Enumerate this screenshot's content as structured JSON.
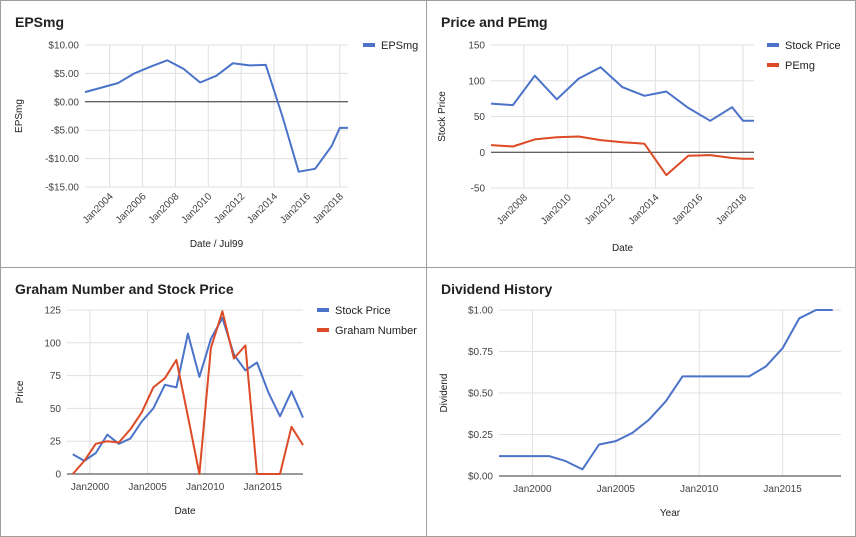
{
  "chart_data": [
    {
      "id": "eps",
      "type": "line",
      "title": "EPSmg",
      "xlabel": "Date / Jul99",
      "ylabel": "EPSmg",
      "ylim": [
        -15,
        10
      ],
      "yticks": [
        10,
        5,
        0,
        -5,
        -10,
        -15
      ],
      "ytick_labels": [
        "$10.00",
        "$5.00",
        "$0.00",
        "-$5.00",
        "-$10.00",
        "-$15.00"
      ],
      "xlim": [
        2002.5,
        2018.5
      ],
      "xticks": [
        2004,
        2006,
        2008,
        2010,
        2012,
        2014,
        2016,
        2018
      ],
      "xtick_labels": [
        "Jan2004",
        "Jan2006",
        "Jan2008",
        "Jan2010",
        "Jan2012",
        "Jan2014",
        "Jan2016",
        "Jan2018"
      ],
      "xtick_rotation": -45,
      "zero_line": true,
      "grid": true,
      "legend": "right",
      "series": [
        {
          "name": "EPSmg",
          "color": "#4a73c9",
          "x": [
            2002.5,
            2003.5,
            2004.5,
            2005.5,
            2006.5,
            2007.5,
            2008.5,
            2009.5,
            2010.5,
            2011.5,
            2012.5,
            2013.5,
            2014.5,
            2015.5,
            2016.5,
            2017.5,
            2018.0,
            2018.5
          ],
          "values": [
            1.7,
            2.5,
            3.3,
            5.0,
            6.2,
            7.3,
            5.8,
            3.4,
            4.6,
            6.8,
            6.4,
            6.5,
            -2.5,
            -12.3,
            -11.8,
            -7.8,
            -4.6,
            -4.6
          ]
        }
      ]
    },
    {
      "id": "price_pe",
      "type": "line",
      "title": "Price and PEmg",
      "xlabel": "Date",
      "ylabel": "Stock Price",
      "ylim": [
        -50,
        150
      ],
      "yticks": [
        150,
        100,
        50,
        0,
        -50
      ],
      "ytick_labels": [
        "150",
        "100",
        "50",
        "0",
        "-50"
      ],
      "xlim": [
        2006.5,
        2018.5
      ],
      "xticks": [
        2008,
        2010,
        2012,
        2014,
        2016,
        2018
      ],
      "xtick_labels": [
        "Jan2008",
        "Jan2010",
        "Jan2012",
        "Jan2014",
        "Jan2016",
        "Jan2018"
      ],
      "xtick_rotation": -45,
      "zero_line": true,
      "grid": true,
      "legend": "right",
      "series": [
        {
          "name": "Stock Price",
          "color": "#4a73c9",
          "x": [
            2006.5,
            2007.5,
            2008.5,
            2009.5,
            2010.5,
            2011.5,
            2012.5,
            2013.5,
            2014.5,
            2015.5,
            2016.5,
            2017.5,
            2018.0,
            2018.5
          ],
          "values": [
            68,
            66,
            107,
            74,
            103,
            119,
            91,
            79,
            85,
            62,
            44,
            63,
            44,
            44
          ]
        },
        {
          "name": "PEmg",
          "color": "#dc4a26",
          "x": [
            2006.5,
            2007.5,
            2008.5,
            2009.5,
            2010.5,
            2011.5,
            2012.5,
            2013.5,
            2014.5,
            2015.5,
            2016.5,
            2017.5,
            2018.0,
            2018.5
          ],
          "values": [
            10,
            8,
            18,
            21,
            22,
            17,
            14,
            12,
            -32,
            -5,
            -4,
            -8,
            -9,
            -9
          ]
        }
      ]
    },
    {
      "id": "graham",
      "type": "line",
      "title": "Graham Number and Stock Price",
      "xlabel": "Date",
      "ylabel": "Price",
      "ylim": [
        0,
        125
      ],
      "yticks": [
        125,
        100,
        75,
        50,
        25,
        0
      ],
      "ytick_labels": [
        "125",
        "100",
        "75",
        "50",
        "25",
        "0"
      ],
      "xlim": [
        1998,
        2018.5
      ],
      "xticks": [
        2000,
        2005,
        2010,
        2015
      ],
      "xtick_labels": [
        "Jan2000",
        "Jan2005",
        "Jan2010",
        "Jan2015"
      ],
      "xtick_rotation": 0,
      "zero_line": true,
      "grid": true,
      "legend": "right",
      "series": [
        {
          "name": "Stock Price",
          "color": "#4a73c9",
          "x": [
            1998.5,
            1999.5,
            2000.5,
            2001.5,
            2002.5,
            2003.5,
            2004.5,
            2005.5,
            2006.5,
            2007.5,
            2008.5,
            2009.5,
            2010.5,
            2011.5,
            2012.5,
            2013.5,
            2014.5,
            2015.5,
            2016.5,
            2017.5,
            2018.5
          ],
          "values": [
            15,
            10,
            16,
            30,
            23,
            27,
            40,
            50,
            68,
            66,
            107,
            74,
            103,
            119,
            91,
            79,
            85,
            62,
            44,
            63,
            43
          ]
        },
        {
          "name": "Graham Number",
          "color": "#dc4a26",
          "x": [
            1998.5,
            1999.5,
            2000.5,
            2001.5,
            2002.5,
            2003.5,
            2004.5,
            2005.5,
            2006.5,
            2007.5,
            2008.5,
            2009.5,
            2010.5,
            2011.5,
            2012.5,
            2013.5,
            2014.5,
            2015.5,
            2016.5,
            2017.5,
            2018.5
          ],
          "values": [
            0,
            10,
            23,
            25,
            24,
            34,
            47,
            66,
            73,
            87,
            44,
            0,
            96,
            124,
            88,
            98,
            0,
            0,
            0,
            36,
            22
          ]
        }
      ]
    },
    {
      "id": "dividend",
      "type": "line",
      "title": "Dividend History",
      "xlabel": "Year",
      "ylabel": "Dividend",
      "ylim": [
        0,
        1
      ],
      "yticks": [
        1,
        0.75,
        0.5,
        0.25,
        0
      ],
      "ytick_labels": [
        "$1.00",
        "$0.75",
        "$0.50",
        "$0.25",
        "$0.00"
      ],
      "xlim": [
        1998,
        2018.5
      ],
      "xticks": [
        2000,
        2005,
        2010,
        2015
      ],
      "xtick_labels": [
        "Jan2000",
        "Jan2005",
        "Jan2010",
        "Jan2015"
      ],
      "xtick_rotation": 0,
      "zero_line": true,
      "grid": true,
      "legend": "none",
      "series": [
        {
          "name": "",
          "color": "#4a73c9",
          "x": [
            1998,
            1999,
            2000,
            2001,
            2002,
            2003,
            2004,
            2005,
            2006,
            2007,
            2008,
            2009,
            2010,
            2011,
            2012,
            2013,
            2014,
            2015,
            2016,
            2017,
            2018
          ],
          "values": [
            0.12,
            0.12,
            0.12,
            0.12,
            0.09,
            0.04,
            0.19,
            0.21,
            0.26,
            0.34,
            0.45,
            0.6,
            0.6,
            0.6,
            0.6,
            0.6,
            0.66,
            0.77,
            0.95,
            1.0,
            1.0
          ]
        }
      ]
    }
  ]
}
